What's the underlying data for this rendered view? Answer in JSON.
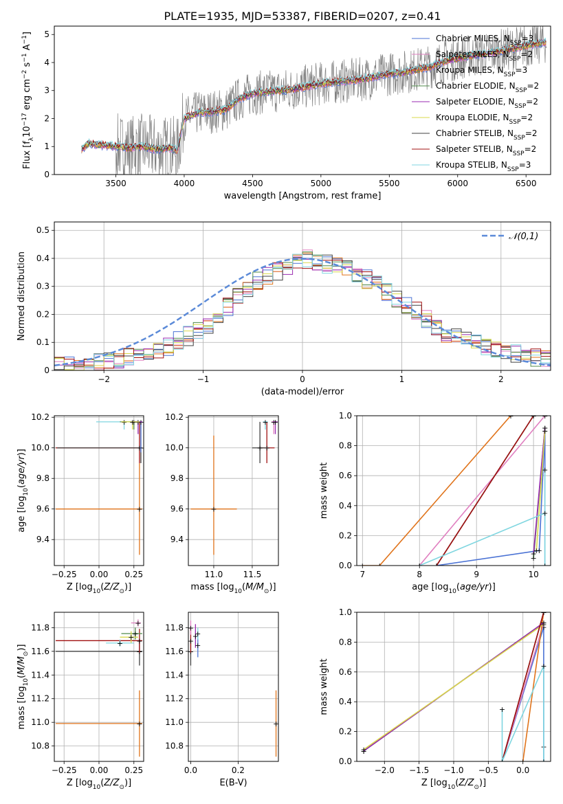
{
  "figure": {
    "title": "PLATE=1935, MJD=53387, FIBERID=0207, z=0.41"
  },
  "series_styles": [
    {
      "label": "Chabrier MILES, N_SSP=3",
      "model": "Chabrier MILES",
      "nssp": "3",
      "color": "#4a72d4"
    },
    {
      "label": "Salpeter MILES, N_SSP=2",
      "model": "Salpeter MILES",
      "nssp": "2",
      "color": "#e07fc0"
    },
    {
      "label": "Kroupa MILES, N_SSP=3",
      "model": "Kroupa MILES",
      "nssp": "3",
      "color": "#e0731a"
    },
    {
      "label": "Chabrier ELODIE, N_SSP=2",
      "model": "Chabrier ELODIE",
      "nssp": "2",
      "color": "#4f8a4a"
    },
    {
      "label": "Salpeter ELODIE, N_SSP=2",
      "model": "Salpeter ELODIE",
      "nssp": "2",
      "color": "#9a2ab0"
    },
    {
      "label": "Kroupa ELODIE, N_SSP=2",
      "model": "Kroupa ELODIE",
      "nssp": "2",
      "color": "#d9d84a"
    },
    {
      "label": "Chabrier STELIB, N_SSP=2",
      "model": "Chabrier STELIB",
      "nssp": "2",
      "color": "#404040"
    },
    {
      "label": "Salpeter STELIB, N_SSP=2",
      "model": "Salpeter STELIB",
      "nssp": "2",
      "color": "#a01010"
    },
    {
      "label": "Kroupa STELIB, N_SSP=3",
      "model": "Kroupa STELIB",
      "nssp": "3",
      "color": "#7fd6e0"
    }
  ],
  "chart_data": [
    {
      "id": "spectrum",
      "type": "line",
      "title": "PLATE=1935, MJD=53387, FIBERID=0207, z=0.41",
      "xlabel": "wavelength [Angstrom, rest frame]",
      "ylabel": "Flux [f_λ 10^-17 erg cm^-2 s^-1 A^-1]",
      "xlim": [
        3050,
        6680
      ],
      "ylim": [
        0,
        5.3
      ],
      "xticks": [
        3500,
        4000,
        4500,
        5000,
        5500,
        6000,
        6500
      ],
      "yticks": [
        0,
        1,
        2,
        3,
        4,
        5
      ],
      "legend": "top-right",
      "data_series": {
        "name": "data",
        "color": "#808080",
        "wavelength_range": [
          3250,
          6650
        ]
      },
      "model_continuum": {
        "x": [
          3250,
          3300,
          3400,
          3500,
          3600,
          3700,
          3800,
          3900,
          3950,
          4000,
          4100,
          4200,
          4300,
          4400,
          4500,
          4600,
          4700,
          4800,
          4900,
          5000,
          5100,
          5200,
          5300,
          5400,
          5500,
          5600,
          5700,
          5800,
          5900,
          6000,
          6100,
          6200,
          6300,
          6400,
          6500,
          6600,
          6650
        ],
        "y": [
          0.9,
          1.1,
          1.05,
          1.0,
          0.95,
          1.0,
          0.9,
          0.95,
          0.85,
          2.0,
          2.2,
          2.25,
          2.3,
          2.7,
          2.9,
          2.95,
          3.0,
          3.05,
          3.15,
          3.25,
          3.3,
          3.35,
          3.4,
          3.5,
          3.6,
          3.65,
          3.75,
          3.85,
          4.05,
          4.15,
          4.25,
          4.3,
          4.4,
          4.5,
          4.6,
          4.7,
          4.75
        ]
      }
    },
    {
      "id": "residuals",
      "type": "bar",
      "xlabel": "(data-model)/error",
      "ylabel": "Normed distribution",
      "xlim": [
        -2.5,
        2.5
      ],
      "ylim": [
        0,
        0.53
      ],
      "xticks": [
        -2,
        -1,
        0,
        1,
        2
      ],
      "yticks": [
        0.0,
        0.1,
        0.2,
        0.3,
        0.4,
        0.5
      ],
      "legend": "top-right",
      "reference": {
        "name": "𝒩(0,1)",
        "mean": 0,
        "sigma": 1,
        "color": "#5b8ad8"
      },
      "bin_width": 0.1,
      "histogram_shape": {
        "x": [
          -2.5,
          -2.0,
          -1.5,
          -1.0,
          -0.5,
          0.0,
          0.5,
          1.0,
          1.5,
          2.0,
          2.5
        ],
        "y": [
          0.01,
          0.03,
          0.06,
          0.15,
          0.31,
          0.4,
          0.36,
          0.25,
          0.12,
          0.07,
          0.04
        ]
      }
    },
    {
      "id": "age_vs_Z",
      "type": "scatter",
      "xlabel": "Z [log10(Z/Z_⊙)]",
      "ylabel": "age  [log10(age/yr)]",
      "xlim": [
        -0.32,
        0.32
      ],
      "ylim": [
        9.23,
        10.21
      ],
      "xticks": [
        "-0.25",
        "0.00",
        "0.25"
      ],
      "yticks": [
        "9.4",
        "9.6",
        "9.8",
        "10.0",
        "10.2"
      ],
      "points": [
        {
          "series": 2,
          "x": 0.29,
          "y": 9.6,
          "xerr": [
            0.6,
            0.02
          ],
          "yerr": [
            0.3,
            0.3
          ]
        },
        {
          "series": 7,
          "x": 0.29,
          "y": 10.0,
          "xerr": [
            0.6,
            0.02
          ],
          "yerr": [
            0.1,
            0.17
          ]
        },
        {
          "series": 6,
          "x": 0.3,
          "y": 10.0,
          "xerr": [
            0.6,
            0.01
          ],
          "yerr": [
            0.1,
            0.17
          ]
        },
        {
          "series": 0,
          "x": 0.3,
          "y": 10.17,
          "xerr": [
            0.05,
            0.01
          ],
          "yerr": [
            0.2,
            0.0
          ]
        },
        {
          "series": 8,
          "x": 0.18,
          "y": 10.17,
          "xerr": [
            0.2,
            0.1
          ],
          "yerr": [
            0.05,
            0.0
          ]
        },
        {
          "series": 3,
          "x": 0.25,
          "y": 10.17,
          "xerr": [
            0.1,
            0.05
          ],
          "yerr": [
            0.05,
            0.0
          ]
        },
        {
          "series": 4,
          "x": 0.28,
          "y": 10.17,
          "xerr": [
            0.05,
            0.03
          ],
          "yerr": [
            0.08,
            0.0
          ]
        },
        {
          "series": 5,
          "x": 0.24,
          "y": 10.17,
          "xerr": [
            0.08,
            0.05
          ],
          "yerr": [
            0.05,
            0.0
          ]
        }
      ]
    },
    {
      "id": "age_vs_mass",
      "type": "scatter",
      "xlabel": "mass [log10(M/M_⊙)]",
      "ylabel": "",
      "xlim": [
        10.67,
        11.84
      ],
      "ylim": [
        9.23,
        10.21
      ],
      "xticks": [
        "11.0",
        "11.5"
      ],
      "yticks": [
        "9.4",
        "9.6",
        "9.8",
        "10.0",
        "10.2"
      ],
      "points": [
        {
          "series": 2,
          "x": 11.0,
          "y": 9.6,
          "xerr": [
            0.3,
            0.3
          ],
          "yerr": [
            0.3,
            0.48
          ]
        },
        {
          "series": 7,
          "x": 11.69,
          "y": 10.0,
          "xerr": [
            0.1,
            0.1
          ],
          "yerr": [
            0.1,
            0.17
          ]
        },
        {
          "series": 6,
          "x": 11.6,
          "y": 10.0,
          "xerr": [
            0.1,
            0.1
          ],
          "yerr": [
            0.1,
            0.17
          ]
        },
        {
          "series": 1,
          "x": 11.78,
          "y": 10.17,
          "xerr": [
            0.03,
            0.03
          ],
          "yerr": [
            0.08,
            0.0
          ]
        },
        {
          "series": 4,
          "x": 11.8,
          "y": 10.17,
          "xerr": [
            0.03,
            0.03
          ],
          "yerr": [
            0.08,
            0.0
          ]
        },
        {
          "series": 8,
          "x": 11.67,
          "y": 10.17,
          "xerr": [
            0.03,
            0.03
          ],
          "yerr": [
            0.05,
            0.0
          ]
        }
      ]
    },
    {
      "id": "weight_vs_age",
      "type": "line",
      "xlabel": "age  [log10(age/yr)]",
      "ylabel": "mass weight",
      "xlim": [
        6.9,
        10.3
      ],
      "ylim": [
        0,
        1.0
      ],
      "xticks": [
        "7",
        "8",
        "9",
        "10"
      ],
      "yticks": [
        "0.0",
        "0.2",
        "0.4",
        "0.6",
        "0.8",
        "1.0"
      ],
      "series": [
        {
          "series": 0,
          "x": [
            8.3,
            10.1,
            10.2,
            10.2
          ],
          "y": [
            0.0,
            0.1,
            0.9,
            0.0
          ]
        },
        {
          "series": 1,
          "x": [
            8.0,
            10.2
          ],
          "y": [
            0.0,
            1.0
          ]
        },
        {
          "series": 2,
          "x": [
            7.0,
            7.3,
            9.6
          ],
          "y": [
            0.0,
            0.0,
            1.0
          ]
        },
        {
          "series": 3,
          "x": [
            10.0,
            10.2
          ],
          "y": [
            0.05,
            0.92
          ]
        },
        {
          "series": 4,
          "x": [
            10.0,
            10.2
          ],
          "y": [
            0.08,
            0.92
          ]
        },
        {
          "series": 5,
          "x": [
            10.05,
            10.2
          ],
          "y": [
            0.1,
            0.9
          ]
        },
        {
          "series": 6,
          "x": [
            8.3,
            10.0
          ],
          "y": [
            0.0,
            1.0
          ]
        },
        {
          "series": 7,
          "x": [
            8.3,
            10.0
          ],
          "y": [
            0.0,
            1.0
          ]
        },
        {
          "series": 8,
          "x": [
            8.0,
            10.2,
            10.2,
            10.2
          ],
          "y": [
            0.0,
            0.35,
            0.64,
            0.0
          ]
        }
      ]
    },
    {
      "id": "mass_vs_Z",
      "type": "scatter",
      "xlabel": "Z [log10(Z/Z_⊙)]",
      "ylabel": "mass [log10(M/M_⊙)]",
      "xlim": [
        -0.32,
        0.32
      ],
      "ylim": [
        10.67,
        11.93
      ],
      "xticks": [
        "-0.25",
        "0.00",
        "0.25"
      ],
      "yticks": [
        "10.8",
        "11.0",
        "11.2",
        "11.4",
        "11.6",
        "11.8"
      ],
      "points": [
        {
          "series": 2,
          "x": 0.29,
          "y": 10.99,
          "xerr": [
            0.6,
            0.02
          ],
          "yerr": [
            0.28,
            0.28
          ]
        },
        {
          "series": 6,
          "x": 0.29,
          "y": 11.6,
          "xerr": [
            0.6,
            0.02
          ],
          "yerr": [
            0.12,
            0.1
          ]
        },
        {
          "series": 7,
          "x": 0.29,
          "y": 11.69,
          "xerr": [
            0.6,
            0.02
          ],
          "yerr": [
            0.1,
            0.1
          ]
        },
        {
          "series": 1,
          "x": 0.28,
          "y": 11.84,
          "xerr": [
            0.05,
            0.02
          ],
          "yerr": [
            0.03,
            0.03
          ]
        },
        {
          "series": 3,
          "x": 0.26,
          "y": 11.75,
          "xerr": [
            0.1,
            0.05
          ],
          "yerr": [
            0.05,
            0.05
          ]
        },
        {
          "series": 8,
          "x": 0.15,
          "y": 11.67,
          "xerr": [
            0.1,
            0.1
          ],
          "yerr": [
            0.03,
            0.03
          ]
        },
        {
          "series": 5,
          "x": 0.23,
          "y": 11.72,
          "xerr": [
            0.08,
            0.05
          ],
          "yerr": [
            0.05,
            0.05
          ]
        }
      ]
    },
    {
      "id": "mass_vs_EBV",
      "type": "scatter",
      "xlabel": "E(B-V)",
      "ylabel": "",
      "xlim": [
        -0.01,
        0.37
      ],
      "ylim": [
        10.67,
        11.93
      ],
      "xticks": [
        "0.0",
        "0.2"
      ],
      "yticks": [
        "10.8",
        "11.0",
        "11.2",
        "11.4",
        "11.6",
        "11.8"
      ],
      "points": [
        {
          "series": 2,
          "x": 0.36,
          "y": 10.99,
          "xerr": [
            0,
            0
          ],
          "yerr": [
            0.28,
            0.28
          ]
        },
        {
          "series": 6,
          "x": 0.0,
          "y": 11.6,
          "xerr": [
            0,
            0
          ],
          "yerr": [
            0.12,
            0.1
          ]
        },
        {
          "series": 7,
          "x": 0.0,
          "y": 11.69,
          "xerr": [
            0,
            0
          ],
          "yerr": [
            0.1,
            0.1
          ]
        },
        {
          "series": 1,
          "x": 0.0,
          "y": 11.8,
          "xerr": [
            0,
            0
          ],
          "yerr": [
            0.06,
            0.06
          ]
        },
        {
          "series": 4,
          "x": 0.02,
          "y": 11.73,
          "xerr": [
            0,
            0
          ],
          "yerr": [
            0.1,
            0.1
          ]
        },
        {
          "series": 0,
          "x": 0.03,
          "y": 11.65,
          "xerr": [
            0,
            0
          ],
          "yerr": [
            0.1,
            0.1
          ]
        },
        {
          "series": 8,
          "x": 0.03,
          "y": 11.75,
          "xerr": [
            0,
            0
          ],
          "yerr": [
            0.05,
            0.05
          ]
        }
      ]
    },
    {
      "id": "weight_vs_Z",
      "type": "line",
      "xlabel": "Z [log10(Z/Z_⊙)]",
      "ylabel": "mass weight",
      "xlim": [
        -2.4,
        0.4
      ],
      "ylim": [
        0,
        1.0
      ],
      "xticks": [
        "-2.0",
        "-1.5",
        "-1.0",
        "-0.5",
        "0.0"
      ],
      "yticks": [
        "0.0",
        "0.2",
        "0.4",
        "0.6",
        "0.8",
        "1.0"
      ],
      "series": [
        {
          "series": 0,
          "x": [
            -0.3,
            0.3,
            0.3,
            0.3
          ],
          "y": [
            0.0,
            0.9,
            0.1,
            0.0
          ]
        },
        {
          "series": 1,
          "x": [
            -0.3,
            0.3
          ],
          "y": [
            0.0,
            0.93
          ]
        },
        {
          "series": 2,
          "x": [
            0.0,
            0.3
          ],
          "y": [
            0.0,
            1.0
          ]
        },
        {
          "series": 3,
          "x": [
            -2.3,
            0.3
          ],
          "y": [
            0.07,
            0.93
          ]
        },
        {
          "series": 4,
          "x": [
            -2.3,
            0.3
          ],
          "y": [
            0.07,
            0.93
          ]
        },
        {
          "series": 5,
          "x": [
            -2.3,
            0.3
          ],
          "y": [
            0.08,
            0.92
          ]
        },
        {
          "series": 6,
          "x": [
            -0.3,
            0.3
          ],
          "y": [
            0.0,
            1.0
          ]
        },
        {
          "series": 7,
          "x": [
            -0.3,
            0.3
          ],
          "y": [
            0.0,
            1.0
          ]
        },
        {
          "series": 8,
          "x": [
            -0.3,
            -0.3,
            0.3,
            0.3
          ],
          "y": [
            0.35,
            0.0,
            0.64,
            0.0
          ]
        }
      ]
    }
  ]
}
